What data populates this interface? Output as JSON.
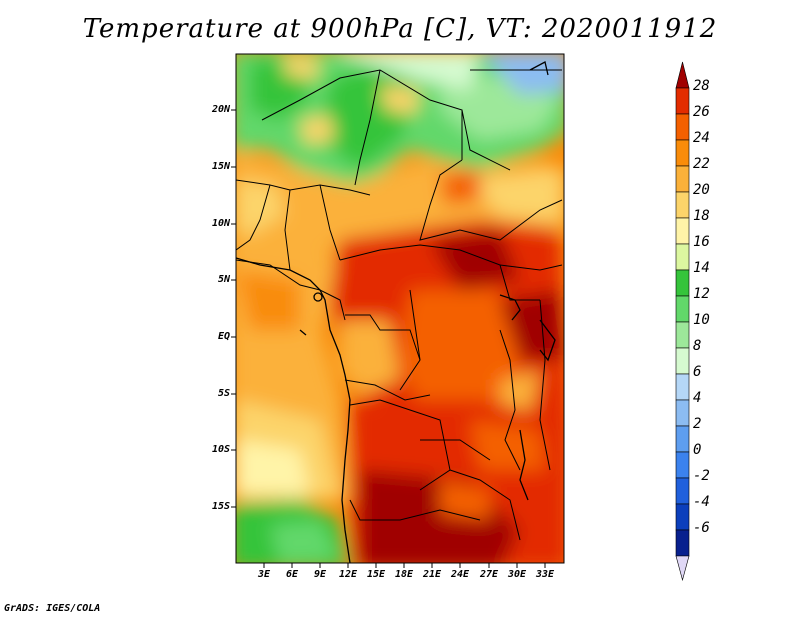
{
  "title": "Temperature at 900hPa [C], VT: 2020011912",
  "credit": "GrADS: IGES/COLA",
  "lat_labels": [
    "20N",
    "15N",
    "10N",
    "5N",
    "EQ",
    "5S",
    "10S",
    "15S"
  ],
  "lon_labels": [
    "3E",
    "6E",
    "9E",
    "12E",
    "15E",
    "18E",
    "21E",
    "24E",
    "27E",
    "30E",
    "33E"
  ],
  "colorbar": {
    "levels": [
      "28",
      "26",
      "24",
      "22",
      "20",
      "18",
      "16",
      "14",
      "12",
      "10",
      "8",
      "6",
      "4",
      "2",
      "0",
      "-2",
      "-4",
      "-6"
    ],
    "colors": [
      "#a00000",
      "#e32c00",
      "#f46000",
      "#f98c0a",
      "#fbb13a",
      "#fcd46a",
      "#fff4a8",
      "#dcf7a0",
      "#35c43b",
      "#62d86a",
      "#9de89a",
      "#d6fad0",
      "#b5d7f7",
      "#8cbcf2",
      "#5e9ef0",
      "#3b82ee",
      "#2060dc",
      "#0b3fbc",
      "#08208e",
      "#e0d8f6"
    ]
  }
}
